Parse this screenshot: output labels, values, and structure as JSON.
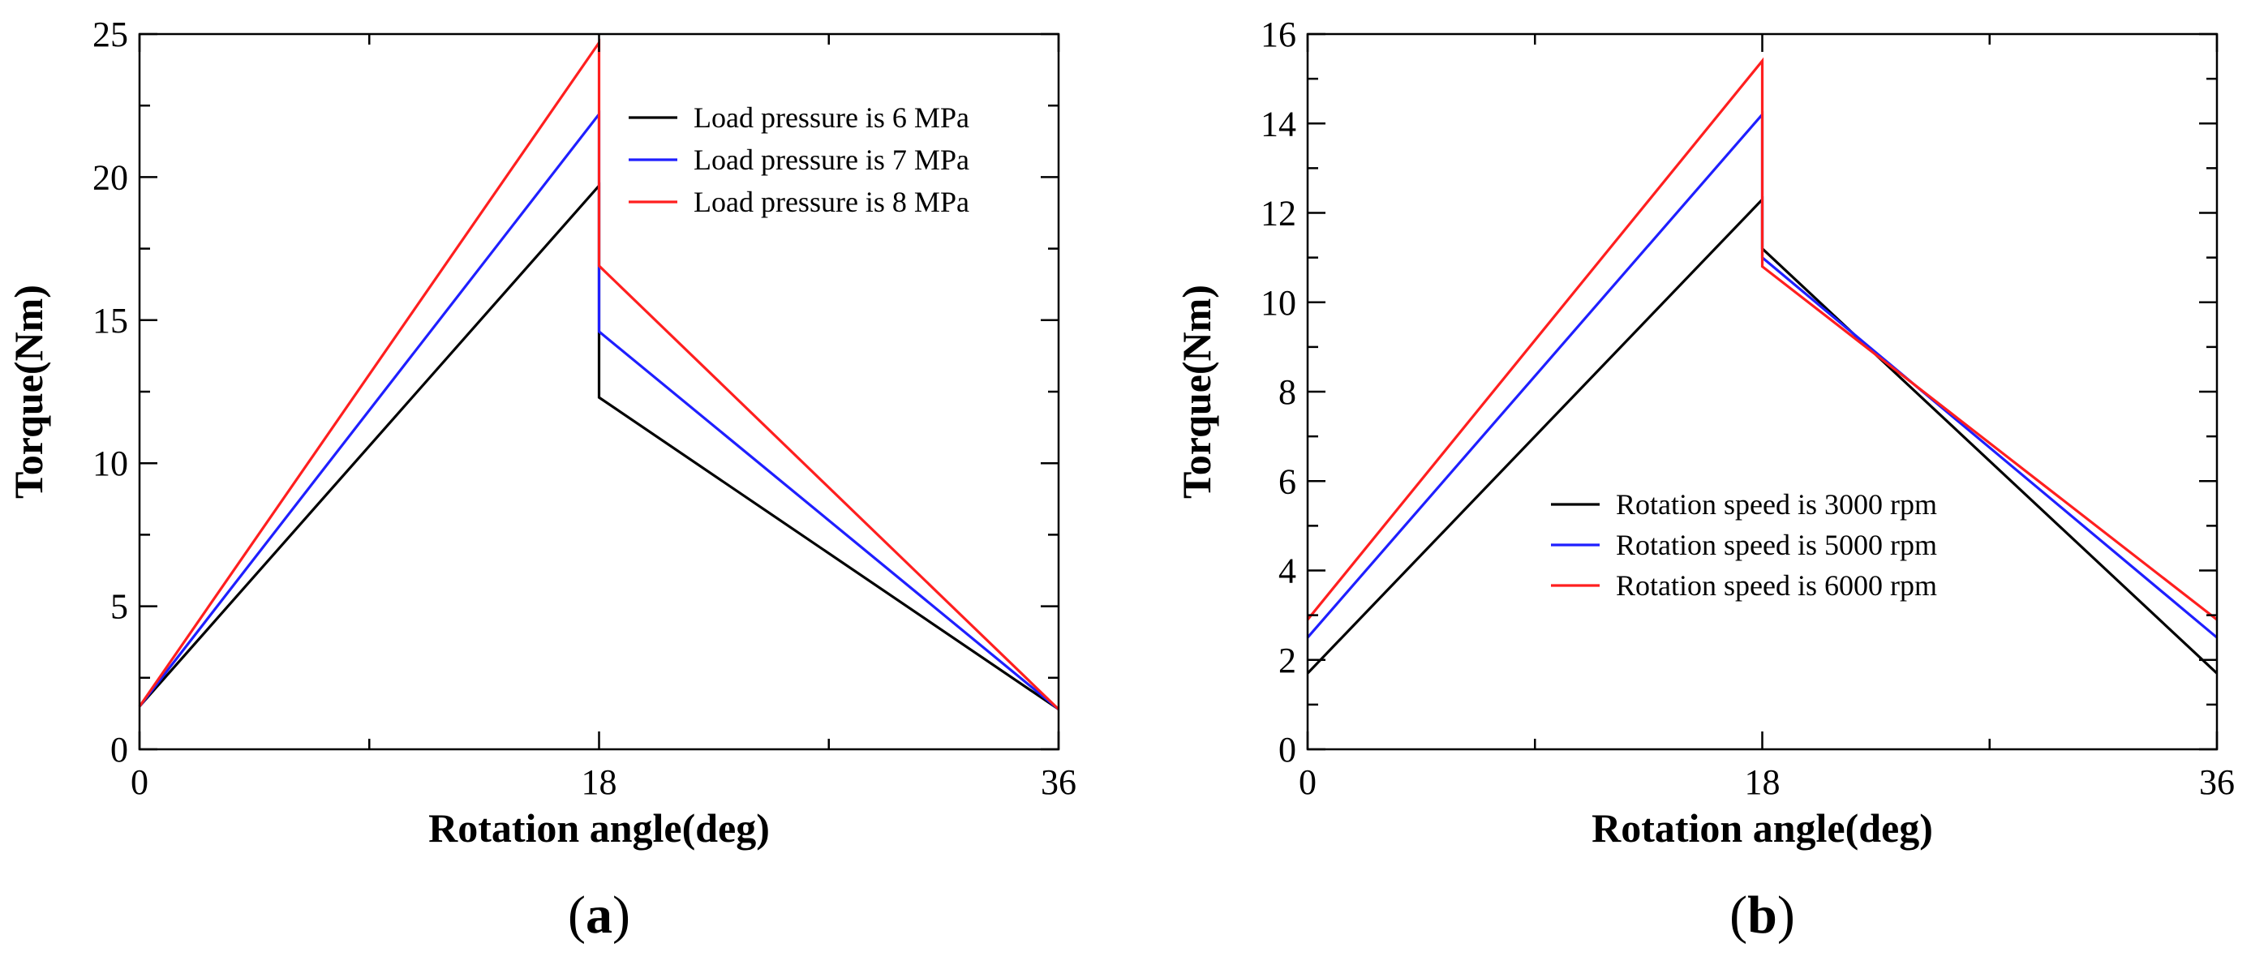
{
  "chart_data": [
    {
      "type": "line",
      "panel_label": {
        "open": "(",
        "letter": "a",
        "close": ")"
      },
      "xlabel": "Rotation angle(deg)",
      "ylabel": "Torque(Nm)",
      "xlim": [
        0,
        36
      ],
      "ylim": [
        0,
        25
      ],
      "xticks": [
        0,
        18,
        36
      ],
      "xminor": [
        9,
        27
      ],
      "yticks": [
        0,
        5,
        10,
        15,
        20,
        25
      ],
      "yminor": [
        2.5,
        7.5,
        12.5,
        17.5,
        22.5
      ],
      "grid": false,
      "legend_position": "top-right",
      "series": [
        {
          "name": "Load pressure is 6 MPa",
          "color": "#000000",
          "x": [
            0,
            18,
            18,
            36
          ],
          "y": [
            1.5,
            19.7,
            12.3,
            1.4
          ]
        },
        {
          "name": "Load pressure is 7 MPa",
          "color": "#1f1fff",
          "x": [
            0,
            18,
            18,
            36
          ],
          "y": [
            1.5,
            22.2,
            14.6,
            1.4
          ]
        },
        {
          "name": "Load pressure is 8 MPa",
          "color": "#ff1f1f",
          "x": [
            0,
            18,
            18,
            36
          ],
          "y": [
            1.5,
            24.7,
            16.9,
            1.4
          ]
        }
      ]
    },
    {
      "type": "line",
      "panel_label": {
        "open": "(",
        "letter": "b",
        "close": ")"
      },
      "xlabel": "Rotation angle(deg)",
      "ylabel": "Torque(Nm)",
      "xlim": [
        0,
        36
      ],
      "ylim": [
        0,
        16
      ],
      "xticks": [
        0,
        18,
        36
      ],
      "xminor": [
        9,
        27
      ],
      "yticks": [
        0,
        2,
        4,
        6,
        8,
        10,
        12,
        14,
        16
      ],
      "yminor": [
        1,
        3,
        5,
        7,
        9,
        11,
        13,
        15
      ],
      "grid": false,
      "legend_position": "bottom-center",
      "series": [
        {
          "name": "Rotation speed is 3000 rpm",
          "color": "#000000",
          "x": [
            0,
            18,
            18,
            36
          ],
          "y": [
            1.7,
            12.3,
            11.2,
            1.7
          ]
        },
        {
          "name": "Rotation speed is 5000 rpm",
          "color": "#1f1fff",
          "x": [
            0,
            18,
            18,
            36
          ],
          "y": [
            2.5,
            14.2,
            11.0,
            2.5
          ]
        },
        {
          "name": "Rotation speed is 6000 rpm",
          "color": "#ff1f1f",
          "x": [
            0,
            18,
            18,
            36
          ],
          "y": [
            2.9,
            15.4,
            10.8,
            2.9
          ]
        }
      ]
    }
  ]
}
